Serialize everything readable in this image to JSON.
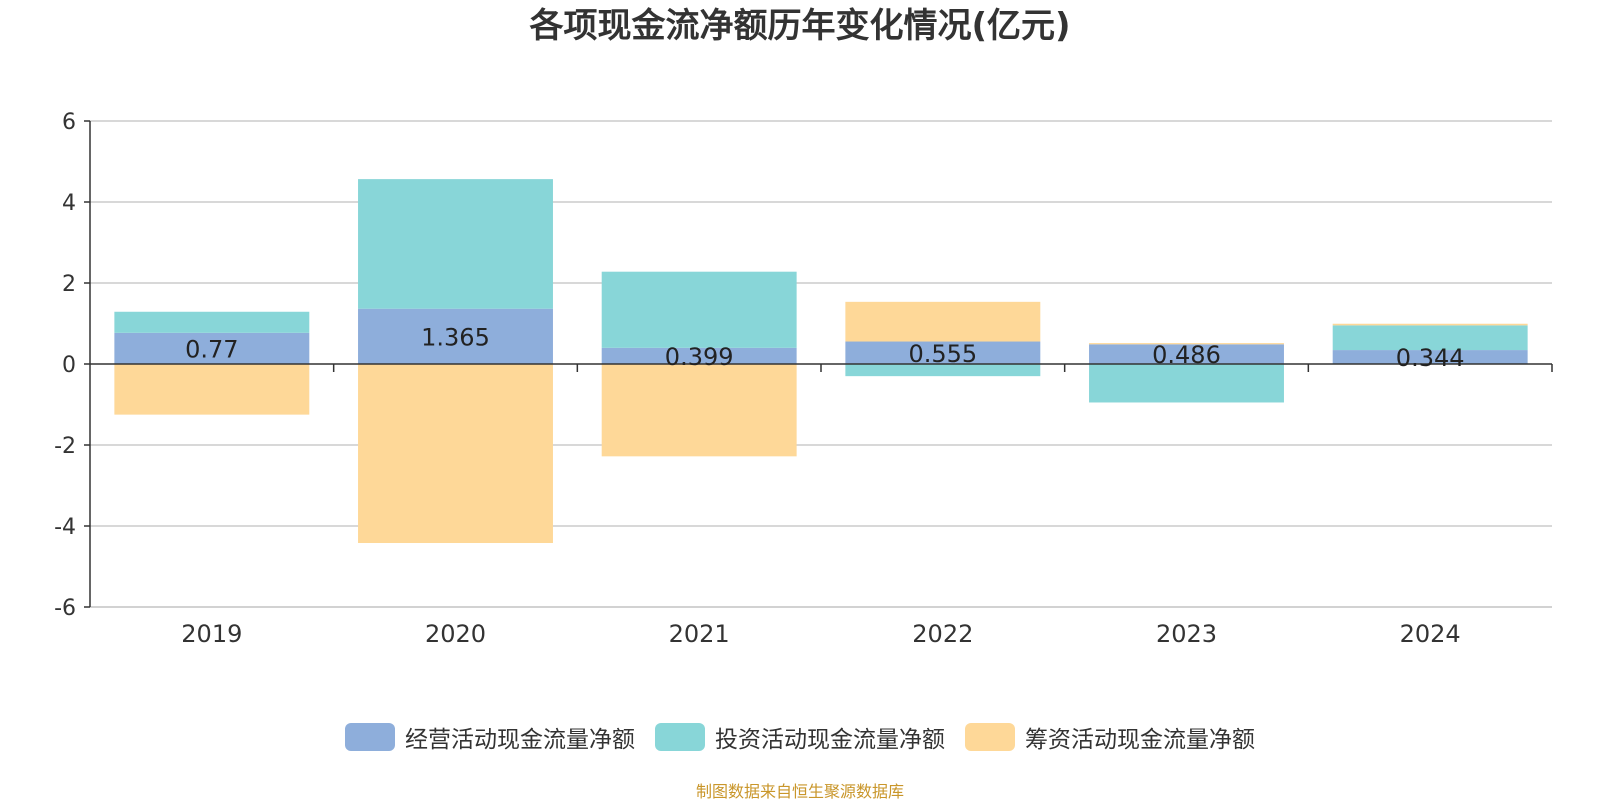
{
  "chart_data": {
    "type": "bar",
    "stacked": true,
    "title": "各项现金流净额历年变化情况(亿元)",
    "categories": [
      "2019",
      "2020",
      "2021",
      "2022",
      "2023",
      "2024"
    ],
    "series": [
      {
        "name": "经营活动现金流量净额",
        "color": "#8eaedb",
        "values": [
          0.77,
          1.365,
          0.399,
          0.555,
          0.486,
          0.344
        ]
      },
      {
        "name": "投资活动现金流量净额",
        "color": "#88d6d8",
        "values": [
          0.52,
          3.2,
          1.88,
          -0.3,
          -0.95,
          0.61
        ]
      },
      {
        "name": "筹资活动现金流量净额",
        "color": "#fed898",
        "values": [
          -1.25,
          -4.42,
          -2.28,
          0.98,
          0.03,
          0.04
        ]
      }
    ],
    "data_labels": [
      "0.77",
      "1.365",
      "0.399",
      "0.555",
      "0.486",
      "0.344"
    ],
    "ylim": [
      -6,
      6
    ],
    "yticks": [
      -6,
      -4,
      -2,
      0,
      2,
      4,
      6
    ],
    "grid": true,
    "legend_position": "bottom"
  },
  "source_note": "制图数据来自恒生聚源数据库"
}
